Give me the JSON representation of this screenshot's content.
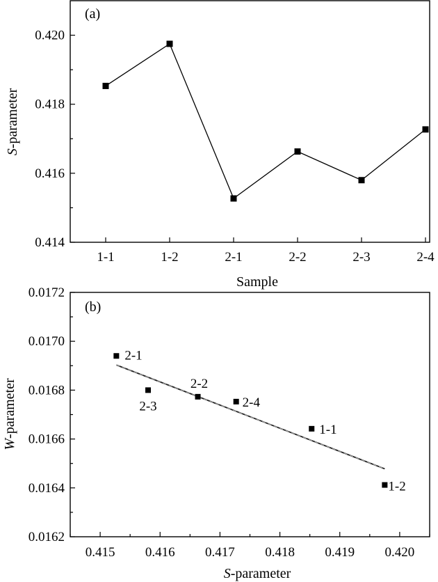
{
  "chart_data": [
    {
      "type": "line",
      "panel_label": "(a)",
      "categories": [
        "1-1",
        "1-2",
        "2-1",
        "2-2",
        "2-3",
        "2-4"
      ],
      "series": [
        {
          "values": [
            0.41853,
            0.41975,
            0.41527,
            0.41663,
            0.4158,
            0.41727
          ]
        }
      ],
      "xlabel": "Sample",
      "ylabel_italic": "S",
      "ylabel_rest": "-parameter",
      "ylim": [
        0.414,
        0.421
      ],
      "yticks": [
        0.414,
        0.416,
        0.418,
        0.42
      ],
      "ytick_labels": [
        "0.414",
        "0.416",
        "0.418",
        "0.420"
      ],
      "marker": "square",
      "grid": false
    },
    {
      "type": "scatter",
      "panel_label": "(b)",
      "points": [
        {
          "label": "2-1",
          "x": 0.41527,
          "y": 0.01694
        },
        {
          "label": "2-3",
          "x": 0.4158,
          "y": 0.0168
        },
        {
          "label": "2-2",
          "x": 0.41663,
          "y": 0.016773
        },
        {
          "label": "2-4",
          "x": 0.41727,
          "y": 0.016753
        },
        {
          "label": "1-1",
          "x": 0.41853,
          "y": 0.016642
        },
        {
          "label": "1-2",
          "x": 0.41975,
          "y": 0.016412
        }
      ],
      "fit_line": {
        "x": [
          0.41527,
          0.41975
        ],
        "y": [
          0.016903,
          0.016478
        ],
        "style": "dashed"
      },
      "xlabel_italic": "S",
      "xlabel_rest": "-parameter",
      "ylabel_italic": "W",
      "ylabel_rest": "-parameter",
      "xlim": [
        0.4145,
        0.4205
      ],
      "xticks": [
        0.415,
        0.416,
        0.417,
        0.418,
        0.419,
        0.42
      ],
      "xtick_labels": [
        "0.415",
        "0.416",
        "0.417",
        "0.418",
        "0.419",
        "0.420"
      ],
      "ylim": [
        0.0162,
        0.0172
      ],
      "yticks": [
        0.0162,
        0.0164,
        0.0166,
        0.0168,
        0.017,
        0.0172
      ],
      "ytick_labels": [
        "0.0162",
        "0.0164",
        "0.0166",
        "0.0168",
        "0.0170",
        "0.0172"
      ],
      "marker": "square",
      "grid": false
    }
  ]
}
